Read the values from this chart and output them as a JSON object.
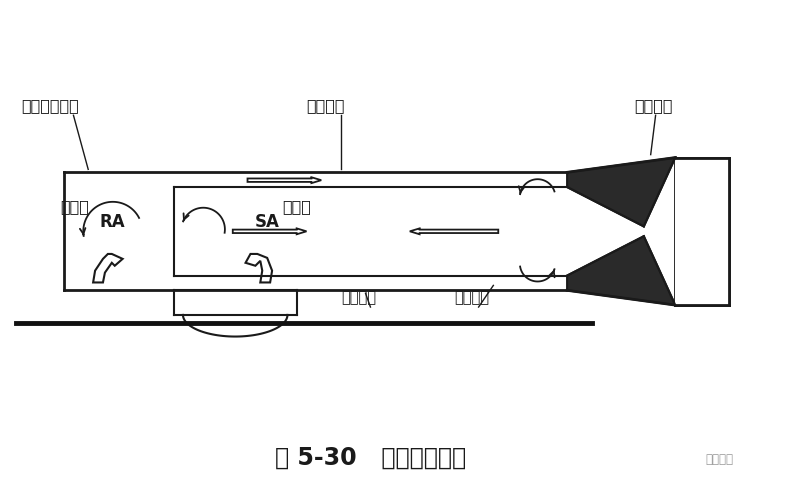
{
  "title": "图 5-30   大温差诱导器",
  "title_fontsize": 17,
  "bg_color": "#ffffff",
  "line_color": "#1a1a1a",
  "labels": {
    "indoor_air": "室内诱导空气",
    "mixing_tube": "混合喉管",
    "nozzle": "诱导喷口",
    "mixed_air": "混合空气",
    "primary_air": "一次空气",
    "inlet": "吸入口",
    "outlet": "吹出口",
    "RA": "RA",
    "SA": "SA",
    "watermark": "暖通家族"
  },
  "fig_width": 7.92,
  "fig_height": 5.01,
  "dpi": 100
}
